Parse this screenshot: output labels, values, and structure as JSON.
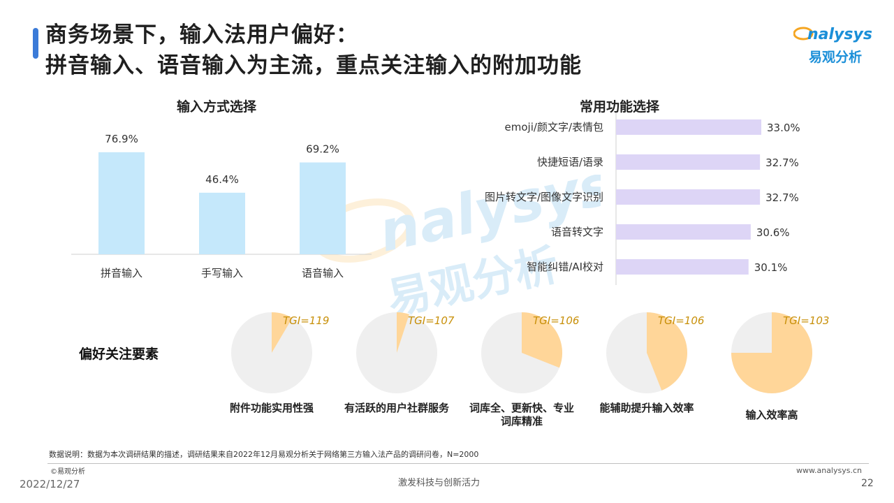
{
  "header": {
    "title_line1": "商务场景下，输入法用户偏好：",
    "title_line2": "拼音输入、语音输入为主流，重点关注输入的附加功能",
    "logo_en": "nalysys",
    "logo_cn": "易观分析",
    "accent_color": "#3b7bd8",
    "logo_color": "#1b8fd8",
    "logo_orange": "#f5a623"
  },
  "chart_data": [
    {
      "type": "bar",
      "title": "输入方式选择",
      "categories": [
        "拼音输入",
        "手写输入",
        "语音输入"
      ],
      "values": [
        76.9,
        46.4,
        69.2
      ],
      "value_labels": [
        "76.9%",
        "46.4%",
        "69.2%"
      ],
      "ylim": [
        0,
        100
      ],
      "color": "#c5e8fb"
    },
    {
      "type": "bar",
      "orientation": "horizontal",
      "title": "常用功能选择",
      "categories": [
        "emoji/颜文字/表情包",
        "快捷短语/语录",
        "图片转文字/图像文字识别",
        "语音转文字",
        "智能纠错/AI校对"
      ],
      "values": [
        33.0,
        32.7,
        32.7,
        30.6,
        30.1
      ],
      "value_labels": [
        "33.0%",
        "32.7%",
        "32.7%",
        "30.6%",
        "30.1%"
      ],
      "xlim": [
        0,
        50
      ],
      "color": "#ddd5f6"
    },
    {
      "type": "pie",
      "title": "偏好关注要素",
      "items": [
        {
          "caption": "附件功能实用性强",
          "tgi": "TGI=119",
          "share": 0.085
        },
        {
          "caption": "有活跃的用户社群服务",
          "tgi": "TGI=107",
          "share": 0.05
        },
        {
          "caption": "词库全、更新快、专业词库精准",
          "tgi": "TGI=106",
          "share": 0.31
        },
        {
          "caption": "能辅助提升输入效率",
          "tgi": "TGI=106",
          "share": 0.44
        },
        {
          "caption": "输入效率高",
          "tgi": "TGI=103",
          "share": 0.75
        }
      ],
      "highlight_color": "#ffd699",
      "rest_color": "#efefef",
      "tgi_color": "#c8900a"
    }
  ],
  "footnote": "数据说明：数据为本次调研结果的描述，调研结果来自2022年12月易观分析关于网络第三方输入法产品的调研问卷，N=2000",
  "footer": {
    "brand": "易观分析",
    "date": "2022/12/27",
    "slogan": "激发科技与创新活力",
    "site": "www.analysys.cn",
    "page": "22"
  },
  "watermark": {
    "en": "nalysys",
    "cn": "易观分析"
  }
}
